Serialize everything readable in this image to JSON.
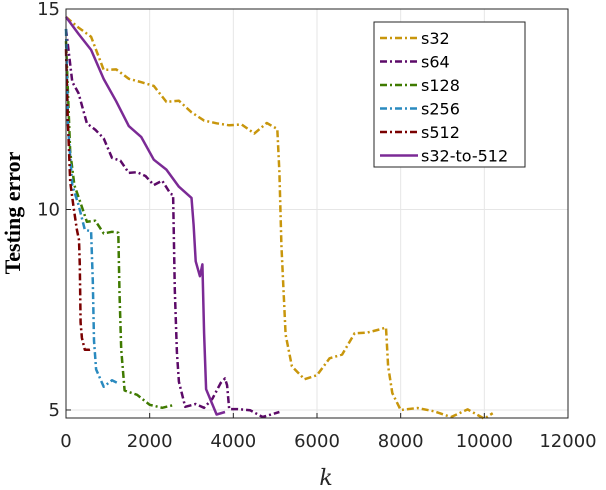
{
  "chart_data": {
    "type": "line",
    "title": "",
    "xlabel": "k",
    "ylabel": "Testing error",
    "xlim": [
      0,
      12000
    ],
    "ylim": [
      4.8,
      15
    ],
    "xticks": [
      0,
      2000,
      4000,
      6000,
      8000,
      10000,
      12000
    ],
    "yticks": [
      5,
      10,
      15
    ],
    "xtick_labels": [
      "0",
      "2000",
      "4000",
      "6000",
      "8000",
      "10000",
      "12000"
    ],
    "ytick_labels": [
      "5",
      "10",
      "15"
    ],
    "grid": true,
    "legend_position": "top-right",
    "series": [
      {
        "name": "s32",
        "color": "#c8960c",
        "style": "dash-dot",
        "points": [
          [
            0,
            14.8
          ],
          [
            300,
            14.6
          ],
          [
            600,
            14.2
          ],
          [
            900,
            13.6
          ],
          [
            1200,
            13.4
          ],
          [
            1500,
            13.3
          ],
          [
            1800,
            13.2
          ],
          [
            2100,
            13.0
          ],
          [
            2400,
            12.8
          ],
          [
            2700,
            12.6
          ],
          [
            3000,
            12.5
          ],
          [
            3300,
            12.2
          ],
          [
            3600,
            12.1
          ],
          [
            3900,
            12.2
          ],
          [
            4200,
            12.0
          ],
          [
            4500,
            12.0
          ],
          [
            4800,
            12.1
          ],
          [
            5050,
            12.0
          ],
          [
            5100,
            11.0
          ],
          [
            5150,
            9.0
          ],
          [
            5250,
            7.0
          ],
          [
            5400,
            6.0
          ],
          [
            5700,
            5.8
          ],
          [
            6000,
            5.9
          ],
          [
            6300,
            6.2
          ],
          [
            6600,
            6.5
          ],
          [
            6900,
            6.8
          ],
          [
            7200,
            7.0
          ],
          [
            7500,
            7.0
          ],
          [
            7650,
            7.0
          ],
          [
            7700,
            6.2
          ],
          [
            7800,
            5.3
          ],
          [
            8000,
            5.1
          ],
          [
            8400,
            5.0
          ],
          [
            8800,
            4.95
          ],
          [
            9200,
            4.9
          ],
          [
            9600,
            4.9
          ],
          [
            10000,
            4.9
          ],
          [
            10200,
            4.92
          ]
        ]
      },
      {
        "name": "s64",
        "color": "#5c0a68",
        "style": "dash-dot",
        "points": [
          [
            0,
            14.5
          ],
          [
            150,
            13.3
          ],
          [
            300,
            12.8
          ],
          [
            500,
            12.2
          ],
          [
            700,
            12.0
          ],
          [
            900,
            11.7
          ],
          [
            1100,
            11.4
          ],
          [
            1300,
            11.1
          ],
          [
            1500,
            11.0
          ],
          [
            1700,
            10.9
          ],
          [
            1900,
            10.8
          ],
          [
            2100,
            10.7
          ],
          [
            2300,
            10.6
          ],
          [
            2500,
            10.5
          ],
          [
            2560,
            10.3
          ],
          [
            2600,
            8.0
          ],
          [
            2650,
            6.5
          ],
          [
            2700,
            5.6
          ],
          [
            2850,
            5.2
          ],
          [
            3100,
            5.05
          ],
          [
            3300,
            5.1
          ],
          [
            3500,
            5.3
          ],
          [
            3700,
            5.6
          ],
          [
            3800,
            5.9
          ],
          [
            3850,
            5.5
          ],
          [
            3900,
            5.1
          ],
          [
            4100,
            5.0
          ],
          [
            4400,
            4.95
          ],
          [
            4700,
            4.92
          ],
          [
            5100,
            4.95
          ]
        ]
      },
      {
        "name": "s128",
        "color": "#3f7a00",
        "style": "dash-dot",
        "points": [
          [
            0,
            14.2
          ],
          [
            100,
            11.5
          ],
          [
            200,
            10.6
          ],
          [
            350,
            10.1
          ],
          [
            500,
            9.8
          ],
          [
            700,
            9.6
          ],
          [
            900,
            9.5
          ],
          [
            1100,
            9.4
          ],
          [
            1250,
            9.4
          ],
          [
            1280,
            8.0
          ],
          [
            1320,
            6.4
          ],
          [
            1400,
            5.6
          ],
          [
            1700,
            5.3
          ],
          [
            2000,
            5.15
          ],
          [
            2300,
            5.1
          ],
          [
            2560,
            5.12
          ]
        ]
      },
      {
        "name": "s256",
        "color": "#2a8abf",
        "style": "dash-dot",
        "points": [
          [
            0,
            14.5
          ],
          [
            50,
            12.0
          ],
          [
            150,
            10.7
          ],
          [
            300,
            10.0
          ],
          [
            450,
            9.6
          ],
          [
            600,
            9.4
          ],
          [
            640,
            8.2
          ],
          [
            670,
            6.8
          ],
          [
            720,
            5.9
          ],
          [
            900,
            5.7
          ],
          [
            1100,
            5.65
          ],
          [
            1280,
            5.65
          ]
        ]
      },
      {
        "name": "s512",
        "color": "#7a0000",
        "style": "dash-dot",
        "points": [
          [
            0,
            14.0
          ],
          [
            40,
            12.2
          ],
          [
            100,
            10.8
          ],
          [
            180,
            10.0
          ],
          [
            260,
            9.5
          ],
          [
            310,
            9.3
          ],
          [
            330,
            8.5
          ],
          [
            350,
            7.3
          ],
          [
            380,
            6.7
          ],
          [
            450,
            6.55
          ],
          [
            560,
            6.52
          ],
          [
            640,
            6.52
          ]
        ]
      },
      {
        "name": "s32-to-512",
        "color": "#7b2a95",
        "style": "solid",
        "points": [
          [
            0,
            14.8
          ],
          [
            300,
            14.3
          ],
          [
            600,
            14.0
          ],
          [
            900,
            13.3
          ],
          [
            1200,
            12.6
          ],
          [
            1500,
            12.2
          ],
          [
            1800,
            11.7
          ],
          [
            2100,
            11.3
          ],
          [
            2400,
            11.0
          ],
          [
            2700,
            10.5
          ],
          [
            3000,
            10.4
          ],
          [
            3050,
            9.5
          ],
          [
            3100,
            8.8
          ],
          [
            3200,
            8.3
          ],
          [
            3260,
            8.6
          ],
          [
            3300,
            7.0
          ],
          [
            3350,
            5.4
          ],
          [
            3600,
            5.0
          ],
          [
            3800,
            4.95
          ]
        ]
      }
    ]
  }
}
